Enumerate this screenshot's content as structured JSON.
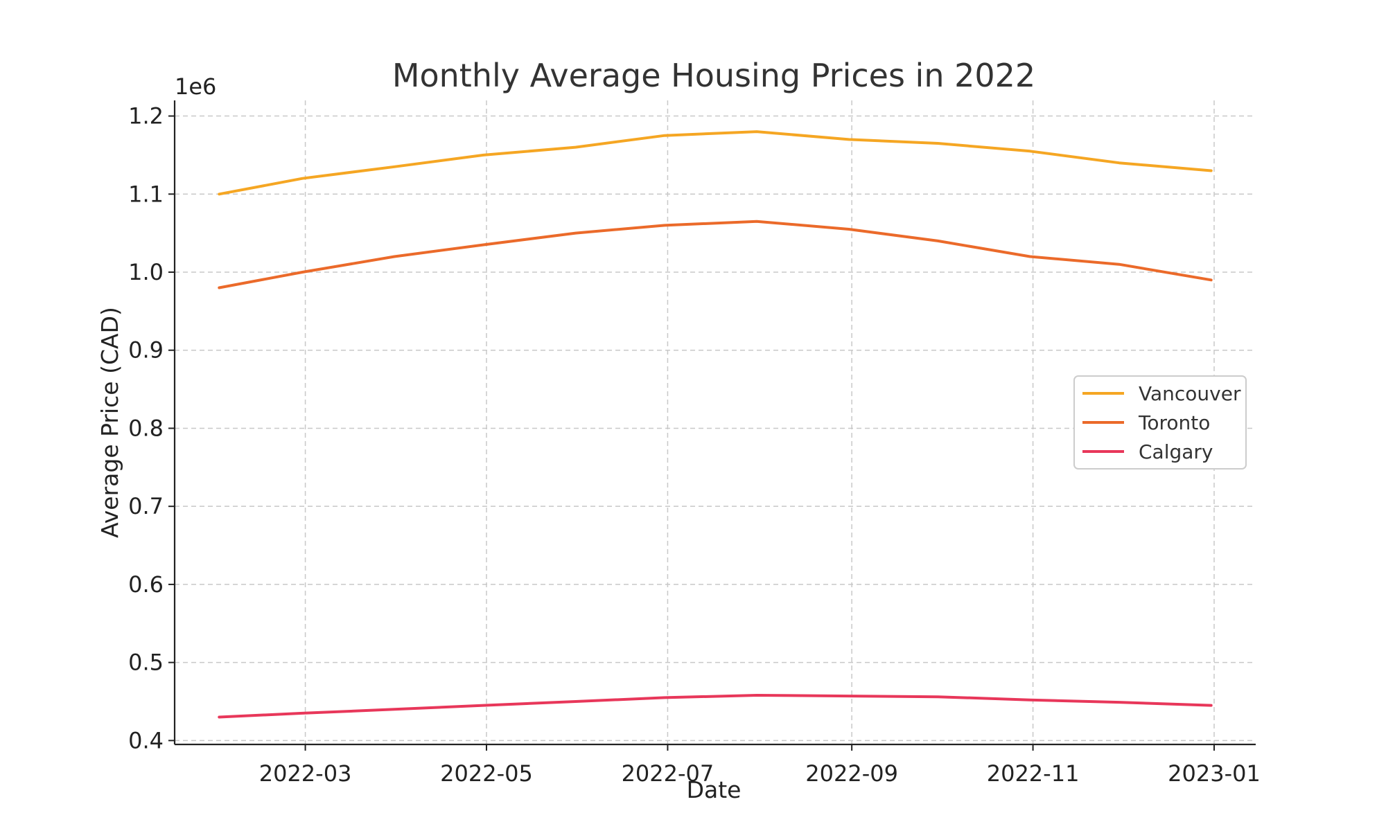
{
  "chart_data": {
    "type": "line",
    "title": "Monthly Average Housing Prices in 2022",
    "xlabel": "Date",
    "ylabel": "Average Price (CAD)",
    "y_offset_label": "1e6",
    "x": [
      "2022-01-31",
      "2022-02-28",
      "2022-03-31",
      "2022-04-30",
      "2022-05-31",
      "2022-06-30",
      "2022-07-31",
      "2022-08-31",
      "2022-09-30",
      "2022-10-31",
      "2022-11-30",
      "2022-12-31"
    ],
    "series": [
      {
        "name": "Vancouver",
        "color": "#F5A623",
        "values": [
          1100000,
          1120000,
          1135000,
          1150000,
          1160000,
          1175000,
          1180000,
          1170000,
          1165000,
          1155000,
          1140000,
          1130000
        ]
      },
      {
        "name": "Toronto",
        "color": "#EB6A2A",
        "values": [
          980000,
          1000000,
          1020000,
          1035000,
          1050000,
          1060000,
          1065000,
          1055000,
          1040000,
          1020000,
          1010000,
          990000
        ]
      },
      {
        "name": "Calgary",
        "color": "#E8375A",
        "values": [
          430000,
          435000,
          440000,
          445000,
          450000,
          455000,
          458000,
          457000,
          456000,
          452000,
          449000,
          445000
        ]
      }
    ],
    "xlim": [
      "2022-01-16",
      "2023-01-15"
    ],
    "ylim": [
      395000,
      1220000
    ],
    "x_ticks": [
      "2022-03-01",
      "2022-05-01",
      "2022-07-01",
      "2022-09-01",
      "2022-11-01",
      "2023-01-01"
    ],
    "x_tick_labels": [
      "2022-03",
      "2022-05",
      "2022-07",
      "2022-09",
      "2022-11",
      "2023-01"
    ],
    "y_ticks": [
      400000,
      500000,
      600000,
      700000,
      800000,
      900000,
      1000000,
      1100000,
      1200000
    ],
    "y_tick_labels": [
      "0.4",
      "0.5",
      "0.6",
      "0.7",
      "0.8",
      "0.9",
      "1.0",
      "1.1",
      "1.2"
    ],
    "grid": true,
    "legend": "center-right"
  }
}
